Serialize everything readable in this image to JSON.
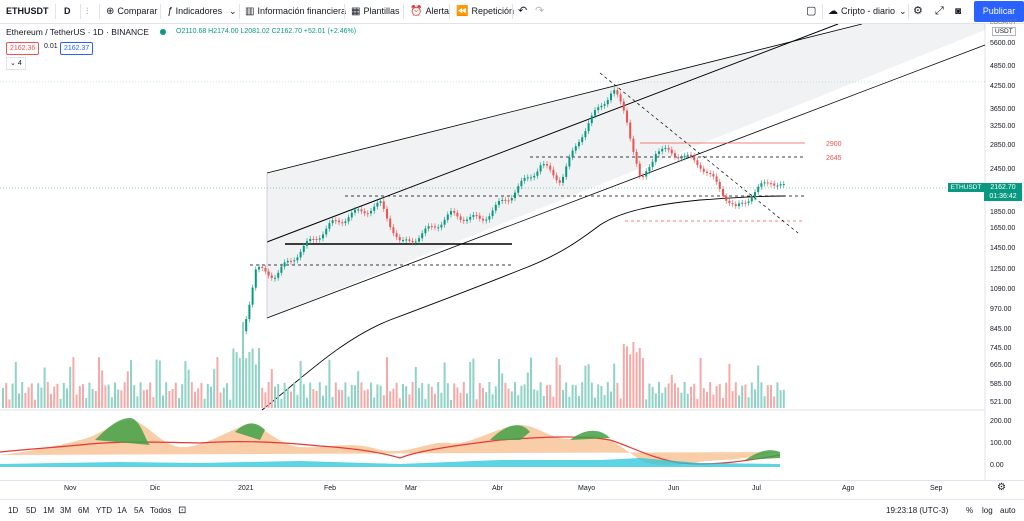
{
  "toolbar": {
    "symbol": "ETHUSDT",
    "interval": "D",
    "compare_label": "Comparar",
    "indicators_label": "Indicadores",
    "financial_label": "Información financiera",
    "templates_label": "Plantillas",
    "alert_label": "Alerta",
    "replay_label": "Repetición",
    "layout_label": "Cripto - diario",
    "publish_label": "Publicar"
  },
  "legend": {
    "title": "Ethereum / TetherUS · 1D · BINANCE",
    "ohlc": "O2110.68 H2174.00 L2081.02 C2162.70 +52.01 (+2.46%)",
    "bid": "2162.36",
    "spread": "0.01",
    "ask": "2162.37",
    "collapse": "4"
  },
  "price_axis": {
    "currency": "USDT",
    "top_label": "LOGARIT",
    "labels": [
      "5600.00",
      "4850.00",
      "4250.00",
      "3650.00",
      "3250.00",
      "2850.00",
      "2450.00",
      "2050.00",
      "1850.00",
      "1650.00",
      "1450.00",
      "1250.00",
      "1090.00",
      "970.00",
      "845.00",
      "745.00",
      "665.00",
      "585.00",
      "521.00"
    ],
    "current_symbol": "ETHUSDT",
    "current_price": "2162.70",
    "countdown": "01:36:42"
  },
  "annotations": {
    "level_high": "2900",
    "level_mid": "2645"
  },
  "oscillator_axis": {
    "labels": [
      "200.00",
      "100.00",
      "50.00",
      "0.00"
    ]
  },
  "time_axis": {
    "labels": [
      "Nov",
      "Dic",
      "2021",
      "Feb",
      "Mar",
      "Abr",
      "Mayo",
      "Jun",
      "Jul",
      "Ago",
      "Sep"
    ]
  },
  "bottom": {
    "ranges": [
      "1D",
      "5D",
      "1M",
      "3M",
      "6M",
      "YTD",
      "1A",
      "5A",
      "Todos"
    ],
    "clock": "19:23:18 (UTC-3)",
    "percent": "%",
    "log": "log",
    "auto": "auto"
  },
  "colors": {
    "up": "#089981",
    "down": "#ef5350",
    "accent": "#2962ff"
  }
}
